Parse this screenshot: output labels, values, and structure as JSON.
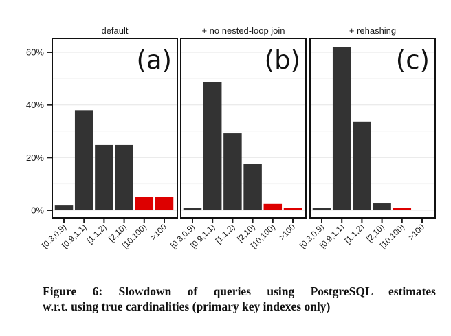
{
  "chart_data": {
    "type": "bar",
    "layout": "faceted",
    "ylabel": "",
    "xlabel": "",
    "ylim": [
      0,
      65
    ],
    "yticks": [
      0,
      20,
      40,
      60
    ],
    "ytick_labels": [
      "0%",
      "20%",
      "40%",
      "60%"
    ],
    "minor_gridlines": [
      10,
      30,
      50
    ],
    "grid": true,
    "categories": [
      "[0.3,0.9)",
      "[0.9,1.1)",
      "[1.1,2)",
      "[2,10)",
      "[10,100)",
      ">100"
    ],
    "highlight_color": "#dd0000",
    "bar_color": "#333333",
    "highlight_categories": [
      "[10,100)",
      ">100"
    ],
    "panels": [
      {
        "title": "default",
        "tag": "(a)",
        "values": [
          1.8,
          38.0,
          24.8,
          24.8,
          5.2,
          5.2
        ]
      },
      {
        "title": "+ no nested-loop join",
        "tag": "(b)",
        "values": [
          0.8,
          48.6,
          29.2,
          17.5,
          2.4,
          0.8
        ]
      },
      {
        "title": "+ rehashing",
        "tag": "(c)",
        "values": [
          0.8,
          62.0,
          33.7,
          2.6,
          0.8,
          0.0
        ]
      }
    ]
  },
  "caption": {
    "line1": "Figure 6:  Slowdown of queries using PostgreSQL estimates",
    "line2": "w.r.t. using true cardinalities (primary key indexes only)"
  }
}
